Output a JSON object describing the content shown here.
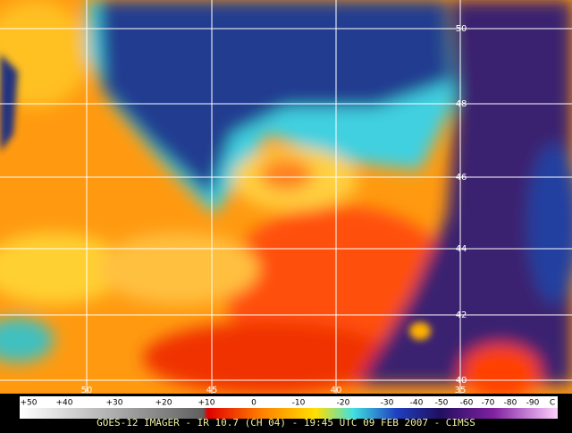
{
  "lat_labels": [
    "50",
    "48",
    "46",
    "44",
    "42",
    "40"
  ],
  "lon_labels": [
    "50",
    "45",
    "40",
    "35"
  ],
  "colorbar": {
    "labels": [
      "+50",
      "+40",
      "+30",
      "+20",
      "+10",
      "0",
      "-10",
      "-20",
      "-30",
      "-40",
      "-50",
      "-60",
      "-70",
      "-80",
      "-90",
      "C"
    ]
  },
  "caption": "GOES-12 IMAGER - IR 10.7 (CH 04) - 19:45 UTC 09 FEB 2007 - CIMSS"
}
